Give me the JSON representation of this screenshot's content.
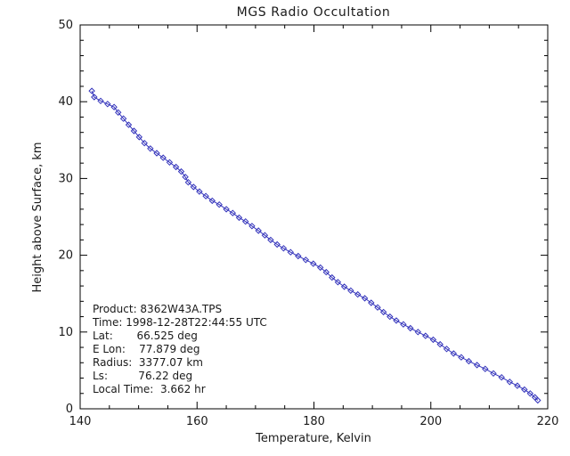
{
  "figure": {
    "background_color": "#ffffff",
    "axis_color": "#000000",
    "text_color": "#1a1a1a"
  },
  "chart_data": {
    "type": "line",
    "title": "MGS Radio Occultation",
    "xlabel": "Temperature, Kelvin",
    "ylabel": "Height above Surface, km",
    "xlim": [
      140,
      220
    ],
    "ylim": [
      0,
      50
    ],
    "xticks": [
      140,
      160,
      180,
      200,
      220
    ],
    "yticks": [
      0,
      10,
      20,
      30,
      40,
      50
    ],
    "x_minor_step": 5,
    "y_minor_step": 2,
    "grid": false,
    "legend": "none",
    "line_color": "#3333bb",
    "marker": "diamond",
    "series": [
      {
        "name": "temperature-profile",
        "x_units": "Kelvin",
        "y_units": "km",
        "points": [
          [
            142.0,
            41.4
          ],
          [
            142.4,
            40.6
          ],
          [
            143.5,
            40.1
          ],
          [
            144.7,
            39.7
          ],
          [
            145.8,
            39.3
          ],
          [
            146.5,
            38.6
          ],
          [
            147.4,
            37.8
          ],
          [
            148.3,
            37.0
          ],
          [
            149.2,
            36.2
          ],
          [
            150.1,
            35.4
          ],
          [
            151.0,
            34.6
          ],
          [
            152.0,
            33.9
          ],
          [
            153.1,
            33.3
          ],
          [
            154.2,
            32.7
          ],
          [
            155.3,
            32.1
          ],
          [
            156.4,
            31.5
          ],
          [
            157.3,
            30.9
          ],
          [
            158.0,
            30.2
          ],
          [
            158.5,
            29.5
          ],
          [
            159.4,
            28.9
          ],
          [
            160.4,
            28.3
          ],
          [
            161.5,
            27.7
          ],
          [
            162.6,
            27.1
          ],
          [
            163.8,
            26.6
          ],
          [
            165.0,
            26.0
          ],
          [
            166.1,
            25.5
          ],
          [
            167.2,
            24.9
          ],
          [
            168.3,
            24.4
          ],
          [
            169.4,
            23.8
          ],
          [
            170.5,
            23.2
          ],
          [
            171.6,
            22.6
          ],
          [
            172.6,
            22.0
          ],
          [
            173.7,
            21.4
          ],
          [
            174.8,
            20.9
          ],
          [
            176.0,
            20.4
          ],
          [
            177.3,
            19.9
          ],
          [
            178.6,
            19.4
          ],
          [
            179.9,
            18.9
          ],
          [
            181.1,
            18.4
          ],
          [
            182.1,
            17.8
          ],
          [
            183.1,
            17.1
          ],
          [
            184.1,
            16.5
          ],
          [
            185.2,
            15.9
          ],
          [
            186.3,
            15.4
          ],
          [
            187.5,
            14.9
          ],
          [
            188.7,
            14.4
          ],
          [
            189.8,
            13.8
          ],
          [
            190.9,
            13.2
          ],
          [
            191.9,
            12.6
          ],
          [
            193.0,
            12.0
          ],
          [
            194.1,
            11.5
          ],
          [
            195.3,
            11.0
          ],
          [
            196.5,
            10.5
          ],
          [
            197.8,
            10.0
          ],
          [
            199.1,
            9.5
          ],
          [
            200.4,
            9.0
          ],
          [
            201.6,
            8.4
          ],
          [
            202.7,
            7.8
          ],
          [
            203.9,
            7.2
          ],
          [
            205.2,
            6.7
          ],
          [
            206.5,
            6.2
          ],
          [
            207.9,
            5.7
          ],
          [
            209.3,
            5.2
          ],
          [
            210.7,
            4.6
          ],
          [
            212.1,
            4.1
          ],
          [
            213.5,
            3.5
          ],
          [
            214.8,
            3.0
          ],
          [
            216.0,
            2.5
          ],
          [
            217.0,
            2.0
          ],
          [
            217.8,
            1.5
          ],
          [
            218.3,
            1.1
          ]
        ]
      }
    ]
  },
  "annotation": {
    "lines": [
      "Product: 8362W43A.TPS",
      "Time: 1998-12-28T22:44:55 UTC",
      "Lat:       66.525 deg",
      "E Lon:    77.879 deg",
      "Radius:  3377.07 km",
      "Ls:         76.22 deg",
      "Local Time:  3.662 hr"
    ]
  }
}
